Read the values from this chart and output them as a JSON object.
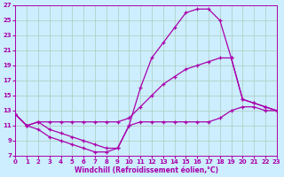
{
  "xlabel": "Windchill (Refroidissement éolien,°C)",
  "bg_color": "#cceeff",
  "grid_color": "#aaccbb",
  "line_color": "#aa00aa",
  "xlim": [
    0,
    23
  ],
  "ylim": [
    7,
    27
  ],
  "xticks": [
    0,
    1,
    2,
    3,
    4,
    5,
    6,
    7,
    8,
    9,
    10,
    11,
    12,
    13,
    14,
    15,
    16,
    17,
    18,
    19,
    20,
    21,
    22,
    23
  ],
  "yticks": [
    7,
    9,
    11,
    13,
    15,
    17,
    19,
    21,
    23,
    25,
    27
  ],
  "line1_x": [
    0,
    1,
    2,
    3,
    4,
    5,
    6,
    7,
    8,
    9,
    10,
    11,
    12,
    13,
    14,
    15,
    16,
    17,
    18,
    19,
    20,
    21,
    22,
    23
  ],
  "line1_y": [
    12.5,
    11.0,
    11.5,
    10.5,
    10.0,
    9.5,
    9.0,
    8.5,
    8.0,
    8.0,
    11.0,
    16.0,
    20.0,
    22.0,
    24.0,
    26.0,
    26.5,
    26.5,
    25.0,
    20.0,
    14.5,
    14.0,
    13.5,
    13.0
  ],
  "line2_x": [
    0,
    1,
    2,
    3,
    4,
    5,
    6,
    7,
    8,
    9,
    10,
    11,
    12,
    13,
    14,
    15,
    16,
    17,
    18,
    19,
    20,
    21,
    22,
    23
  ],
  "line2_y": [
    12.5,
    11.0,
    11.5,
    11.5,
    11.5,
    11.5,
    11.5,
    11.5,
    11.5,
    11.5,
    12.0,
    13.5,
    15.0,
    16.5,
    17.5,
    18.5,
    19.0,
    19.5,
    20.0,
    20.0,
    14.5,
    14.0,
    13.5,
    13.0
  ],
  "line3_x": [
    0,
    1,
    2,
    3,
    4,
    5,
    6,
    7,
    8,
    9,
    10,
    11,
    12,
    13,
    14,
    15,
    16,
    17,
    18,
    19,
    20,
    21,
    22,
    23
  ],
  "line3_y": [
    12.5,
    11.0,
    10.5,
    9.5,
    9.0,
    8.5,
    8.0,
    7.5,
    7.5,
    8.0,
    11.0,
    11.5,
    11.5,
    11.5,
    11.5,
    11.5,
    11.5,
    11.5,
    12.0,
    13.0,
    13.5,
    13.5,
    13.0,
    13.0
  ]
}
